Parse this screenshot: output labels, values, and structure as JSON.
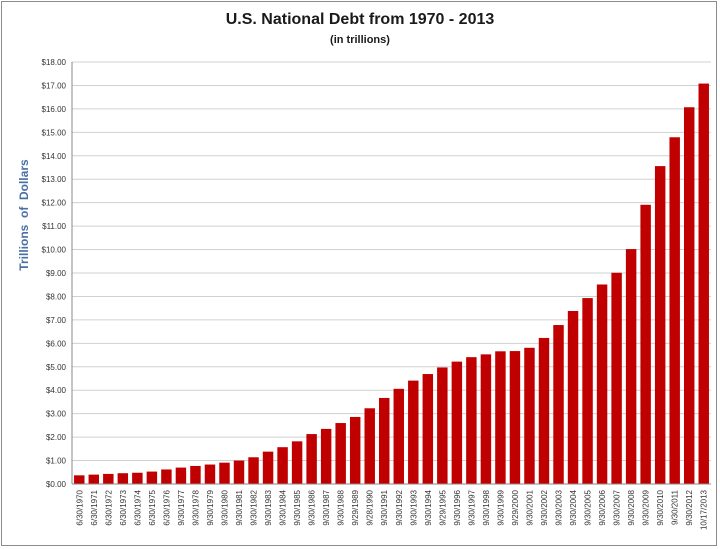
{
  "chart_data": {
    "type": "bar",
    "title": "U.S. National Debt from 1970 - 2013",
    "subtitle": "(in trillions)",
    "ylabel": "Trillions  of  Dollars",
    "xlabel": "",
    "ylim": [
      0,
      18
    ],
    "ytick_step": 1,
    "ytick_labels": [
      "$0.00",
      "$1.00",
      "$2.00",
      "$3.00",
      "$4.00",
      "$5.00",
      "$6.00",
      "$7.00",
      "$8.00",
      "$9.00",
      "$10.00",
      "$11.00",
      "$12.00",
      "$13.00",
      "$14.00",
      "$15.00",
      "$16.00",
      "$17.00",
      "$18.00"
    ],
    "grid": true,
    "legend": "none",
    "bar_color": "#c00000",
    "categories": [
      "6/30/1970",
      "6/30/1971",
      "6/30/1972",
      "6/30/1973",
      "6/30/1974",
      "6/30/1975",
      "6/30/1976",
      "9/30/1977",
      "9/30/1978",
      "9/30/1979",
      "9/30/1980",
      "9/30/1981",
      "9/30/1982",
      "9/30/1983",
      "9/30/1984",
      "9/30/1985",
      "9/30/1986",
      "9/30/1987",
      "9/30/1988",
      "9/29/1989",
      "9/28/1990",
      "9/30/1991",
      "9/30/1992",
      "9/30/1993",
      "9/30/1994",
      "9/29/1995",
      "9/30/1996",
      "9/30/1997",
      "9/30/1998",
      "9/30/1999",
      "9/29/2000",
      "9/30/2001",
      "9/30/2002",
      "9/30/2003",
      "9/30/2004",
      "9/30/2005",
      "9/30/2006",
      "9/30/2007",
      "9/30/2008",
      "9/30/2009",
      "9/30/2010",
      "9/30/2011",
      "9/30/2012",
      "10/17/2013"
    ],
    "values": [
      0.37,
      0.4,
      0.43,
      0.46,
      0.48,
      0.53,
      0.62,
      0.7,
      0.77,
      0.83,
      0.91,
      1.0,
      1.14,
      1.38,
      1.57,
      1.82,
      2.13,
      2.35,
      2.6,
      2.86,
      3.23,
      3.67,
      4.06,
      4.41,
      4.69,
      4.97,
      5.22,
      5.41,
      5.53,
      5.66,
      5.67,
      5.81,
      6.23,
      6.78,
      7.38,
      7.93,
      8.51,
      9.01,
      10.02,
      11.91,
      13.56,
      14.79,
      16.07,
      17.08
    ]
  }
}
